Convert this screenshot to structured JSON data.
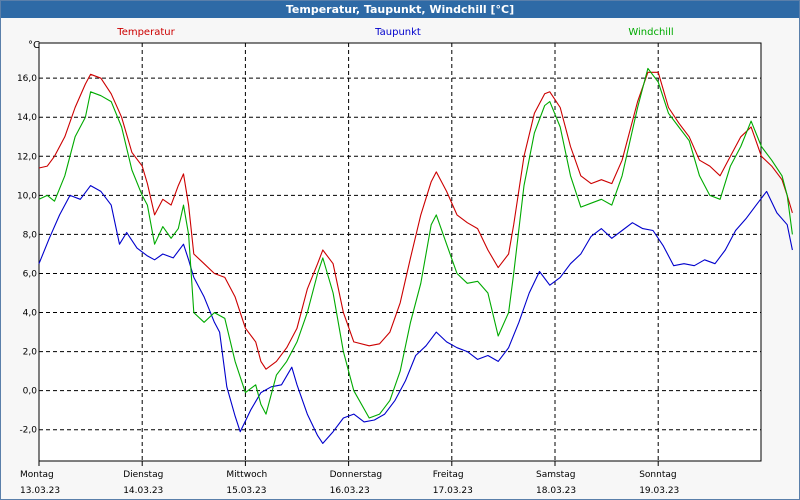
{
  "chart_data": {
    "type": "line",
    "title": "Temperatur, Taupunkt, Windchill [°C]",
    "ylabel": "°C",
    "ylim": [
      -3.6,
      17.8
    ],
    "xlim": [
      0,
      7.0
    ],
    "yticks": [
      -2.0,
      0.0,
      2.0,
      4.0,
      6.0,
      8.0,
      10.0,
      12.0,
      14.0,
      16.0
    ],
    "ytick_labels": [
      "-2,0",
      "0,0",
      "2,0",
      "4,0",
      "6,0",
      "8,0",
      "10,0",
      "12,0",
      "14,0",
      "16,0"
    ],
    "grid": true,
    "legend": "top",
    "days": [
      {
        "day": "Montag",
        "date": "13.03.23",
        "x": 0
      },
      {
        "day": "Dienstag",
        "date": "14.03.23",
        "x": 1
      },
      {
        "day": "Mittwoch",
        "date": "15.03.23",
        "x": 2
      },
      {
        "day": "Donnerstag",
        "date": "16.03.23",
        "x": 3
      },
      {
        "day": "Freitag",
        "date": "17.03.23",
        "x": 4
      },
      {
        "day": "Samstag",
        "date": "18.03.23",
        "x": 5
      },
      {
        "day": "Sonntag",
        "date": "19.03.23",
        "x": 6
      }
    ],
    "series": [
      {
        "name": "Temperatur",
        "color": "#cc0000",
        "points": [
          [
            0,
            11.4
          ],
          [
            0.08,
            11.5
          ],
          [
            0.15,
            12.0
          ],
          [
            0.25,
            13.0
          ],
          [
            0.35,
            14.5
          ],
          [
            0.45,
            15.7
          ],
          [
            0.5,
            16.2
          ],
          [
            0.6,
            16.0
          ],
          [
            0.7,
            15.2
          ],
          [
            0.8,
            14.0
          ],
          [
            0.9,
            12.2
          ],
          [
            1.0,
            11.5
          ],
          [
            1.05,
            10.6
          ],
          [
            1.12,
            9.0
          ],
          [
            1.2,
            9.8
          ],
          [
            1.28,
            9.5
          ],
          [
            1.35,
            10.5
          ],
          [
            1.4,
            11.1
          ],
          [
            1.45,
            9.5
          ],
          [
            1.5,
            7.0
          ],
          [
            1.6,
            6.5
          ],
          [
            1.7,
            6.0
          ],
          [
            1.8,
            5.8
          ],
          [
            1.9,
            4.8
          ],
          [
            2.0,
            3.2
          ],
          [
            2.1,
            2.5
          ],
          [
            2.15,
            1.5
          ],
          [
            2.2,
            1.1
          ],
          [
            2.3,
            1.5
          ],
          [
            2.4,
            2.2
          ],
          [
            2.5,
            3.2
          ],
          [
            2.6,
            5.2
          ],
          [
            2.7,
            6.5
          ],
          [
            2.75,
            7.2
          ],
          [
            2.85,
            6.5
          ],
          [
            2.95,
            4.0
          ],
          [
            3.05,
            2.5
          ],
          [
            3.2,
            2.3
          ],
          [
            3.3,
            2.4
          ],
          [
            3.4,
            3.0
          ],
          [
            3.5,
            4.5
          ],
          [
            3.6,
            6.8
          ],
          [
            3.7,
            9.0
          ],
          [
            3.8,
            10.7
          ],
          [
            3.85,
            11.2
          ],
          [
            3.95,
            10.2
          ],
          [
            4.05,
            9.0
          ],
          [
            4.15,
            8.6
          ],
          [
            4.25,
            8.3
          ],
          [
            4.35,
            7.2
          ],
          [
            4.45,
            6.3
          ],
          [
            4.55,
            7.0
          ],
          [
            4.6,
            8.5
          ],
          [
            4.7,
            12.0
          ],
          [
            4.8,
            14.2
          ],
          [
            4.9,
            15.2
          ],
          [
            4.95,
            15.3
          ],
          [
            5.05,
            14.5
          ],
          [
            5.15,
            12.5
          ],
          [
            5.25,
            11.0
          ],
          [
            5.35,
            10.6
          ],
          [
            5.45,
            10.8
          ],
          [
            5.55,
            10.6
          ],
          [
            5.65,
            11.8
          ],
          [
            5.8,
            14.8
          ],
          [
            5.9,
            16.3
          ],
          [
            6.0,
            16.3
          ],
          [
            6.1,
            14.5
          ],
          [
            6.2,
            13.7
          ],
          [
            6.3,
            13.0
          ],
          [
            6.4,
            11.8
          ],
          [
            6.5,
            11.5
          ],
          [
            6.6,
            11.0
          ],
          [
            6.7,
            12.0
          ],
          [
            6.8,
            13.0
          ],
          [
            6.9,
            13.5
          ],
          [
            7.0,
            12.0
          ],
          [
            7.1,
            11.5
          ],
          [
            7.2,
            10.8
          ],
          [
            7.25,
            10.0
          ],
          [
            7.3,
            9.1
          ]
        ]
      },
      {
        "name": "Taupunkt",
        "color": "#0000cc",
        "points": [
          [
            0,
            6.5
          ],
          [
            0.1,
            7.8
          ],
          [
            0.2,
            9.0
          ],
          [
            0.3,
            10.0
          ],
          [
            0.4,
            9.8
          ],
          [
            0.5,
            10.5
          ],
          [
            0.6,
            10.2
          ],
          [
            0.7,
            9.5
          ],
          [
            0.78,
            7.5
          ],
          [
            0.85,
            8.1
          ],
          [
            0.95,
            7.3
          ],
          [
            1.05,
            6.9
          ],
          [
            1.12,
            6.7
          ],
          [
            1.2,
            7.0
          ],
          [
            1.3,
            6.8
          ],
          [
            1.4,
            7.5
          ],
          [
            1.45,
            6.7
          ],
          [
            1.5,
            5.8
          ],
          [
            1.6,
            4.8
          ],
          [
            1.7,
            3.5
          ],
          [
            1.75,
            3.0
          ],
          [
            1.82,
            0.2
          ],
          [
            1.9,
            -1.3
          ],
          [
            1.95,
            -2.1
          ],
          [
            2.05,
            -1.0
          ],
          [
            2.15,
            -0.1
          ],
          [
            2.25,
            0.2
          ],
          [
            2.35,
            0.3
          ],
          [
            2.45,
            1.2
          ],
          [
            2.5,
            0.3
          ],
          [
            2.6,
            -1.2
          ],
          [
            2.7,
            -2.3
          ],
          [
            2.75,
            -2.7
          ],
          [
            2.85,
            -2.1
          ],
          [
            2.95,
            -1.4
          ],
          [
            3.05,
            -1.2
          ],
          [
            3.15,
            -1.6
          ],
          [
            3.25,
            -1.5
          ],
          [
            3.35,
            -1.2
          ],
          [
            3.45,
            -0.5
          ],
          [
            3.55,
            0.5
          ],
          [
            3.65,
            1.8
          ],
          [
            3.75,
            2.3
          ],
          [
            3.85,
            3.0
          ],
          [
            3.95,
            2.5
          ],
          [
            4.05,
            2.2
          ],
          [
            4.15,
            2.0
          ],
          [
            4.25,
            1.6
          ],
          [
            4.35,
            1.8
          ],
          [
            4.45,
            1.5
          ],
          [
            4.55,
            2.2
          ],
          [
            4.65,
            3.5
          ],
          [
            4.75,
            5.0
          ],
          [
            4.85,
            6.1
          ],
          [
            4.95,
            5.4
          ],
          [
            5.05,
            5.8
          ],
          [
            5.15,
            6.5
          ],
          [
            5.25,
            7.0
          ],
          [
            5.35,
            7.9
          ],
          [
            5.45,
            8.3
          ],
          [
            5.55,
            7.8
          ],
          [
            5.65,
            8.2
          ],
          [
            5.75,
            8.6
          ],
          [
            5.85,
            8.3
          ],
          [
            5.95,
            8.2
          ],
          [
            6.05,
            7.4
          ],
          [
            6.15,
            6.4
          ],
          [
            6.25,
            6.5
          ],
          [
            6.35,
            6.4
          ],
          [
            6.45,
            6.7
          ],
          [
            6.55,
            6.5
          ],
          [
            6.65,
            7.2
          ],
          [
            6.75,
            8.2
          ],
          [
            6.85,
            8.8
          ],
          [
            6.95,
            9.5
          ],
          [
            7.05,
            10.2
          ],
          [
            7.15,
            9.1
          ],
          [
            7.25,
            8.5
          ],
          [
            7.3,
            7.2
          ]
        ]
      },
      {
        "name": "Windchill",
        "color": "#00aa00",
        "points": [
          [
            0,
            9.8
          ],
          [
            0.08,
            10.0
          ],
          [
            0.15,
            9.7
          ],
          [
            0.25,
            11.0
          ],
          [
            0.35,
            13.0
          ],
          [
            0.45,
            14.0
          ],
          [
            0.5,
            15.3
          ],
          [
            0.6,
            15.1
          ],
          [
            0.7,
            14.8
          ],
          [
            0.8,
            13.5
          ],
          [
            0.9,
            11.3
          ],
          [
            1.0,
            10.0
          ],
          [
            1.05,
            9.5
          ],
          [
            1.12,
            7.5
          ],
          [
            1.2,
            8.4
          ],
          [
            1.28,
            7.8
          ],
          [
            1.35,
            8.3
          ],
          [
            1.4,
            9.5
          ],
          [
            1.45,
            8.0
          ],
          [
            1.5,
            4.0
          ],
          [
            1.6,
            3.5
          ],
          [
            1.7,
            4.0
          ],
          [
            1.8,
            3.7
          ],
          [
            1.9,
            1.5
          ],
          [
            2.0,
            -0.1
          ],
          [
            2.1,
            0.3
          ],
          [
            2.15,
            -0.7
          ],
          [
            2.2,
            -1.2
          ],
          [
            2.3,
            0.8
          ],
          [
            2.4,
            1.5
          ],
          [
            2.5,
            2.5
          ],
          [
            2.6,
            4.0
          ],
          [
            2.7,
            6.0
          ],
          [
            2.75,
            6.8
          ],
          [
            2.85,
            5.0
          ],
          [
            2.95,
            2.0
          ],
          [
            3.05,
            0.0
          ],
          [
            3.2,
            -1.4
          ],
          [
            3.3,
            -1.2
          ],
          [
            3.4,
            -0.5
          ],
          [
            3.5,
            1.0
          ],
          [
            3.6,
            3.5
          ],
          [
            3.7,
            5.5
          ],
          [
            3.8,
            8.5
          ],
          [
            3.85,
            9.0
          ],
          [
            3.95,
            7.5
          ],
          [
            4.05,
            6.0
          ],
          [
            4.15,
            5.5
          ],
          [
            4.25,
            5.6
          ],
          [
            4.35,
            5.0
          ],
          [
            4.45,
            2.8
          ],
          [
            4.55,
            4.0
          ],
          [
            4.6,
            6.0
          ],
          [
            4.7,
            10.5
          ],
          [
            4.8,
            13.2
          ],
          [
            4.9,
            14.6
          ],
          [
            4.95,
            14.8
          ],
          [
            5.05,
            13.5
          ],
          [
            5.15,
            11.0
          ],
          [
            5.25,
            9.4
          ],
          [
            5.35,
            9.6
          ],
          [
            5.45,
            9.8
          ],
          [
            5.55,
            9.5
          ],
          [
            5.65,
            11.0
          ],
          [
            5.8,
            14.5
          ],
          [
            5.9,
            16.5
          ],
          [
            6.0,
            15.8
          ],
          [
            6.1,
            14.2
          ],
          [
            6.2,
            13.5
          ],
          [
            6.3,
            12.8
          ],
          [
            6.4,
            11.0
          ],
          [
            6.5,
            10.0
          ],
          [
            6.6,
            9.8
          ],
          [
            6.7,
            11.5
          ],
          [
            6.8,
            12.5
          ],
          [
            6.9,
            13.8
          ],
          [
            7.0,
            12.5
          ],
          [
            7.1,
            11.8
          ],
          [
            7.2,
            11.0
          ],
          [
            7.25,
            10.0
          ],
          [
            7.3,
            8.0
          ]
        ]
      }
    ]
  }
}
